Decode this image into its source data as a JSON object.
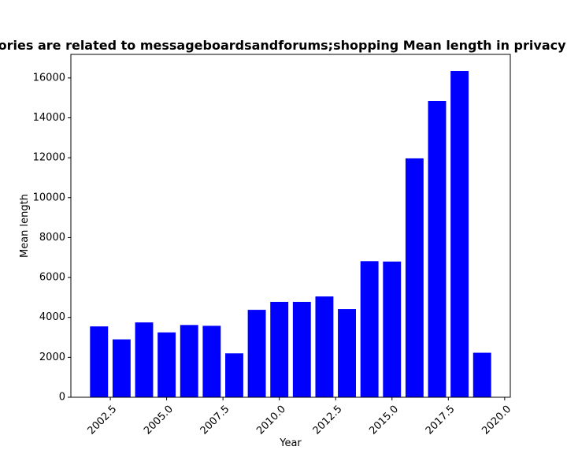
{
  "chart_data": {
    "type": "bar",
    "title": "Categories are related to messageboardsandforums;shopping Mean length in privacy policies",
    "xlabel": "Year",
    "ylabel": "Mean length",
    "bar_color": "#0000ff",
    "x": [
      2002,
      2003,
      2004,
      2005,
      2006,
      2007,
      2008,
      2009,
      2010,
      2011,
      2012,
      2013,
      2014,
      2015,
      2016,
      2017,
      2018,
      2019
    ],
    "values": [
      3550,
      2900,
      3750,
      3250,
      3620,
      3580,
      2200,
      4380,
      4780,
      4780,
      5050,
      4420,
      6820,
      6800,
      11970,
      14850,
      16350,
      2230
    ],
    "xlim": [
      2000.75,
      2020.25
    ],
    "ylim": [
      0,
      17180
    ],
    "x_ticks": [
      2002.5,
      2005.0,
      2007.5,
      2010.0,
      2012.5,
      2015.0,
      2017.5,
      2020.0
    ],
    "x_tick_labels": [
      "2002.5",
      "2005.0",
      "2007.5",
      "2010.0",
      "2012.5",
      "2015.0",
      "2017.5",
      "2020.0"
    ],
    "y_ticks": [
      0,
      2000,
      4000,
      6000,
      8000,
      10000,
      12000,
      14000,
      16000
    ],
    "y_tick_labels": [
      "0",
      "2000",
      "4000",
      "6000",
      "8000",
      "10000",
      "12000",
      "14000",
      "16000"
    ],
    "grid": false,
    "legend": "none"
  }
}
